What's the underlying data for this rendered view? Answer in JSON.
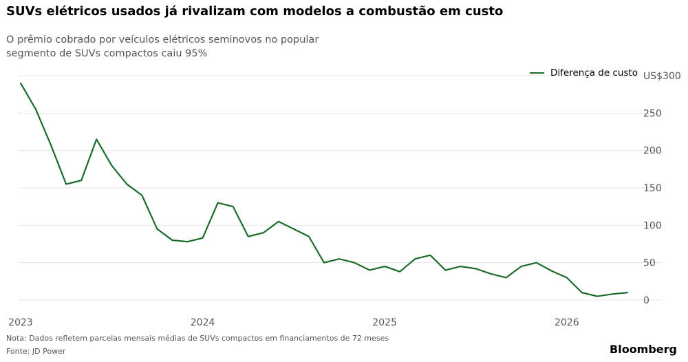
{
  "header": {
    "title": "SUVs elétricos usados já rivalizam com modelos a combustão em custo",
    "subtitle": "O prêmio cobrado por veículos elétricos seminovos no popular segmento de SUVs compactos caiu 95%"
  },
  "colors": {
    "series_line": "#1a6b2a",
    "gridline": "#e6e6e6",
    "axis_text": "#555555"
  },
  "chart_data": {
    "type": "line",
    "title": "SUVs elétricos usados já rivalizam com modelos a combustão em custo",
    "subtitle": "O prêmio cobrado por veículos elétricos seminovos no popular segmento de SUVs compactos caiu 95%",
    "xlabel": "",
    "ylabel": "",
    "x": [
      "2023-01",
      "2023-02",
      "2023-03",
      "2023-04",
      "2023-05",
      "2023-06",
      "2023-07",
      "2023-08",
      "2023-09",
      "2023-10",
      "2023-11",
      "2023-12",
      "2024-01",
      "2024-02",
      "2024-03",
      "2024-04",
      "2024-05",
      "2024-06",
      "2024-07",
      "2024-08",
      "2024-09",
      "2024-10",
      "2024-11",
      "2024-12",
      "2025-01",
      "2025-02",
      "2025-03",
      "2025-04",
      "2025-05",
      "2025-06",
      "2025-07",
      "2025-08",
      "2025-09",
      "2025-10",
      "2025-11",
      "2025-12",
      "2026-01",
      "2026-02",
      "2026-03",
      "2026-04",
      "2026-05"
    ],
    "series": [
      {
        "name": "Diferença de custo",
        "values": [
          290,
          255,
          207,
          155,
          160,
          215,
          180,
          155,
          140,
          95,
          80,
          78,
          83,
          130,
          125,
          85,
          90,
          105,
          95,
          85,
          50,
          55,
          50,
          40,
          45,
          38,
          55,
          60,
          40,
          45,
          42,
          35,
          30,
          45,
          50,
          39,
          30,
          10,
          5,
          8,
          10
        ]
      }
    ],
    "xticks": [
      "2023",
      "2024",
      "2025",
      "2026"
    ],
    "yticks": [
      0,
      50,
      100,
      150,
      200,
      250,
      300
    ],
    "ytick_labels": [
      "0",
      "50",
      "100",
      "150",
      "200",
      "250",
      "US$300"
    ],
    "ylim": [
      0,
      300
    ],
    "grid": true,
    "legend_position": "top-right",
    "note": "Nota: Dados refletem parcelas mensais médias de SUVs compactos em financiamentos de 72 meses",
    "source": "Fonte: JD Power",
    "brand": "Bloomberg"
  }
}
